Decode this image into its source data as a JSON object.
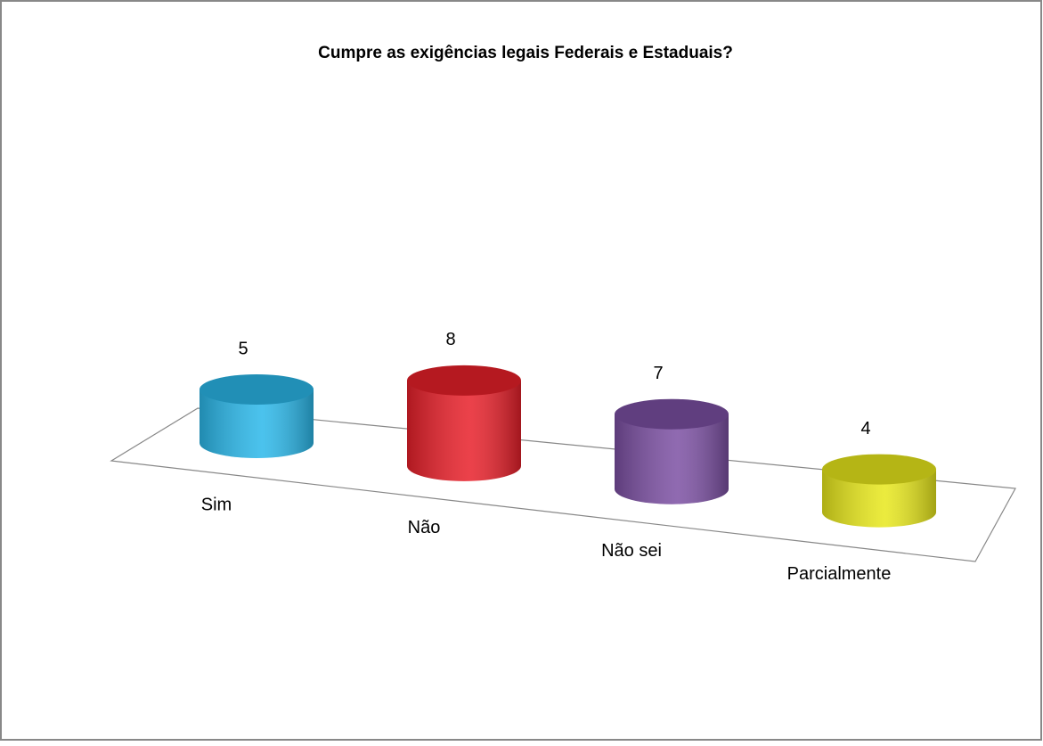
{
  "chart_data": {
    "type": "bar3d",
    "title": "Cumpre as exigências legais Federais e Estaduais?",
    "categories": [
      "Sim",
      "Não",
      "Não sei",
      "Parcialmente"
    ],
    "values": [
      5,
      8,
      7,
      4
    ],
    "colors": [
      "#2bb8ea",
      "#e8202a",
      "#7c50a3",
      "#e8e81c"
    ]
  }
}
